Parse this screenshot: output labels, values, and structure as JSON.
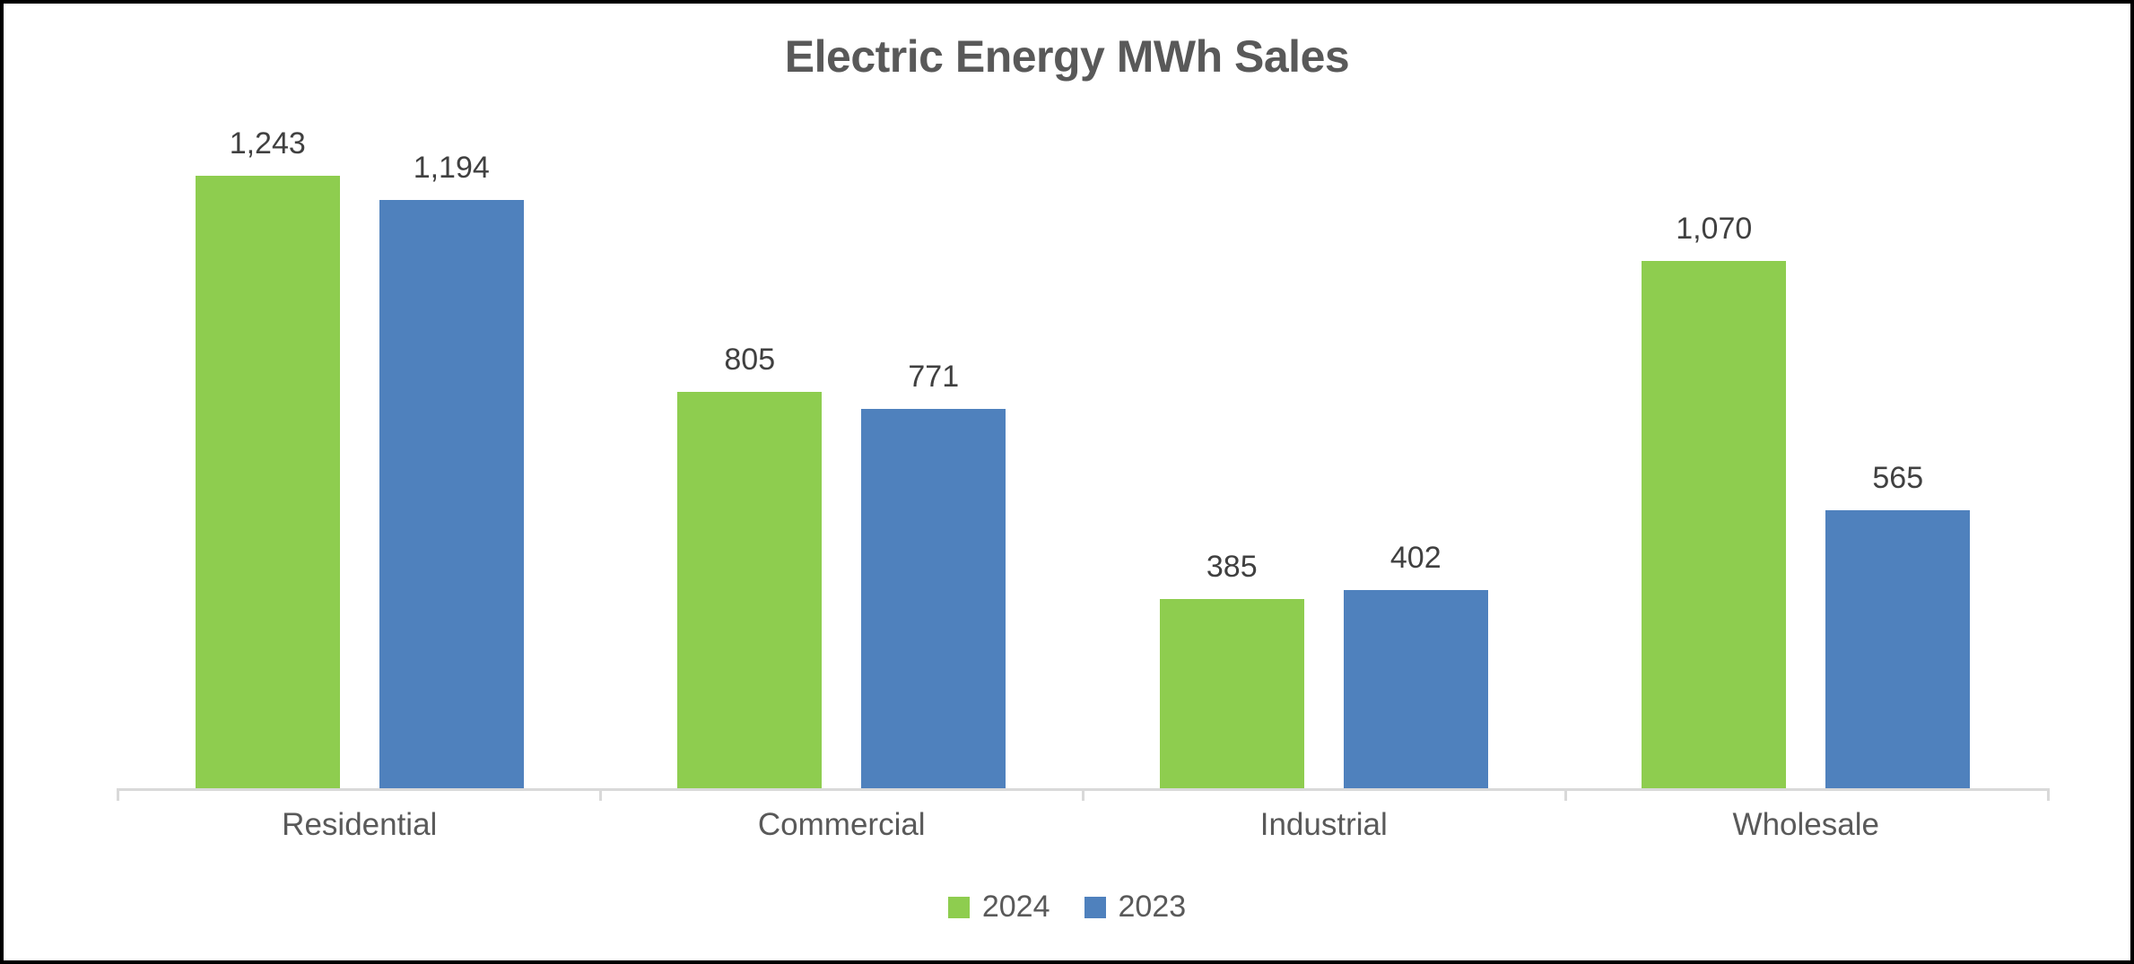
{
  "window": {
    "background_color": "#FFFFFF",
    "border_color": "#000000"
  },
  "chart_data": {
    "type": "bar",
    "title": "Electric Energy MWh Sales",
    "categories": [
      "Residential",
      "Commercial",
      "Industrial",
      "Wholesale"
    ],
    "series": [
      {
        "name": "2024",
        "color": "#8ECD4F",
        "values": [
          1243,
          805,
          385,
          1070
        ],
        "labels": [
          "1,243",
          "805",
          "385",
          "1,070"
        ]
      },
      {
        "name": "2023",
        "color": "#4F81BD",
        "values": [
          1194,
          771,
          402,
          565
        ],
        "labels": [
          "1,194",
          "771",
          "402",
          "565"
        ]
      }
    ],
    "ylim": [
      0,
      1360
    ],
    "grid": false,
    "y_axis_labels_visible": false,
    "data_labels": true,
    "legend_position": "bottom",
    "title_color": "#595959",
    "data_label_color": "#404040",
    "category_label_color": "#595959",
    "legend_text_color": "#595959",
    "axis_line_color": "#D9D9D9"
  }
}
